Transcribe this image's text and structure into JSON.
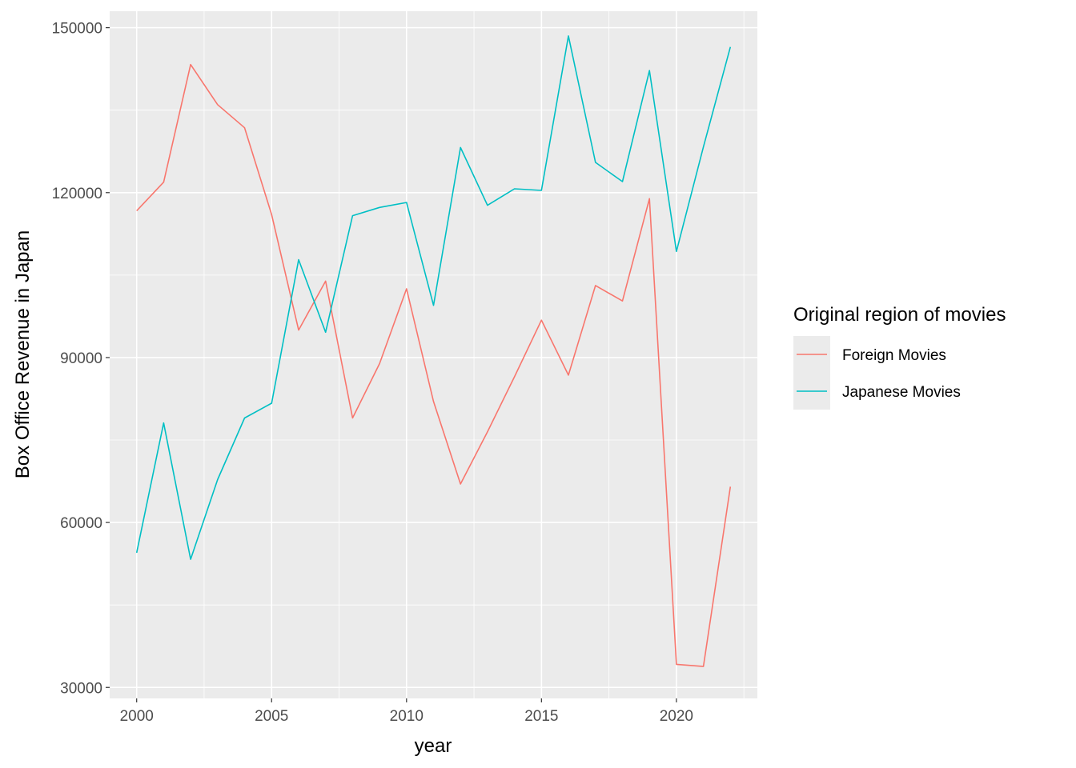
{
  "chart_data": {
    "type": "line",
    "xlabel": "year",
    "ylabel": "Box Office Revenue in Japan",
    "xlim": [
      1999,
      2023
    ],
    "ylim": [
      28000,
      153000
    ],
    "x_ticks": [
      2000,
      2005,
      2010,
      2015,
      2020
    ],
    "y_ticks": [
      30000,
      60000,
      90000,
      120000,
      150000
    ],
    "grid": true,
    "legend": {
      "title": "Original region of movies",
      "position": "right"
    },
    "x": [
      2000,
      2001,
      2002,
      2003,
      2004,
      2005,
      2006,
      2007,
      2008,
      2009,
      2010,
      2011,
      2012,
      2013,
      2014,
      2015,
      2016,
      2017,
      2018,
      2019,
      2020,
      2021,
      2022
    ],
    "series": [
      {
        "name": "Foreign Movies",
        "color": "#F8766D",
        "values": [
          116700,
          121900,
          143300,
          136000,
          131800,
          116000,
          95000,
          103900,
          79000,
          88900,
          102500,
          82000,
          67000,
          76500,
          86500,
          96800,
          86800,
          103100,
          100300,
          118900,
          34200,
          33800,
          66500
        ]
      },
      {
        "name": "Japanese Movies",
        "color": "#00BFC4",
        "values": [
          54500,
          78100,
          53300,
          67800,
          79000,
          81700,
          107800,
          94600,
          115800,
          117300,
          118200,
          99500,
          128200,
          117700,
          120700,
          120400,
          148500,
          125500,
          122000,
          142200,
          109300,
          128300,
          146500
        ]
      }
    ]
  }
}
